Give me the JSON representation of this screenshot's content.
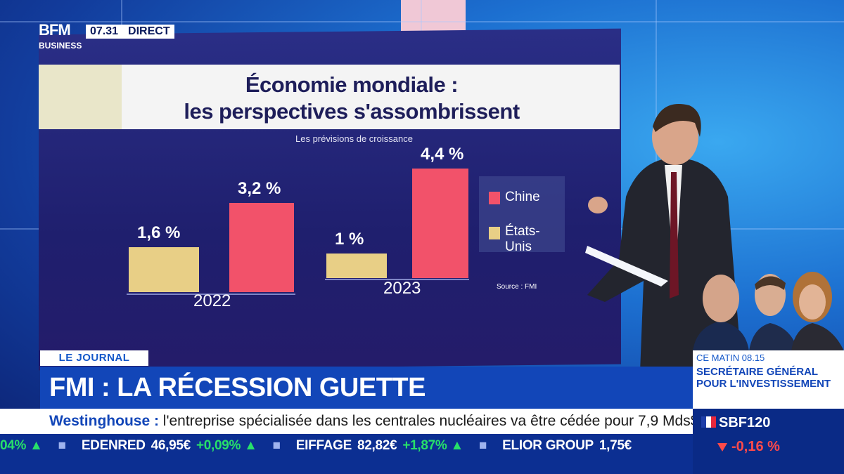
{
  "broadcast": {
    "logo": "BFM",
    "logo_sub": "BUSINESS",
    "time": "07.31",
    "live_label": "DIRECT"
  },
  "chart_data": {
    "type": "bar",
    "title_line1": "Économie mondiale :",
    "title_line2": "les perspectives s'assombrissent",
    "subtitle": "Les prévisions de croissance",
    "categories": [
      "2022",
      "2023"
    ],
    "series": [
      {
        "name": "États-Unis",
        "values": [
          1.6,
          1.0
        ],
        "labels": [
          "1,6 %",
          "1 %"
        ],
        "color": "#e8cf86"
      },
      {
        "name": "Chine",
        "values": [
          3.2,
          4.4
        ],
        "labels": [
          "3,2 %",
          "4,4 %"
        ],
        "color": "#f2526a"
      }
    ],
    "source": "Source : FMI",
    "ylim": [
      0,
      4.4
    ]
  },
  "lower_third": {
    "show_tag": "LE JOURNAL",
    "headline": "FMI : LA RÉCESSION GUETTE",
    "crawl_company": "Westinghouse :",
    "crawl_text": " l'entreprise spécialisée dans les centrales nucléaires va être cédée pour 7,9 Mds$.",
    "side_time": "CE MATIN 08.15",
    "side_title": "SECRÉTAIRE GÉNÉRAL POUR L'INVESTISSEMENT"
  },
  "ticker": {
    "items": [
      {
        "name": "",
        "value": "",
        "change": "04%"
      },
      {
        "name": "EDENRED",
        "value": "46,95€",
        "change": "+0,09%"
      },
      {
        "name": "EIFFAGE",
        "value": "82,82€",
        "change": "+1,87%"
      },
      {
        "name": "ELIOR GROUP",
        "value": "1,75€",
        "change": ""
      }
    ]
  },
  "index": {
    "name": "SBF120",
    "change": "-0,16 %",
    "down_color": "#ff4a4a"
  }
}
